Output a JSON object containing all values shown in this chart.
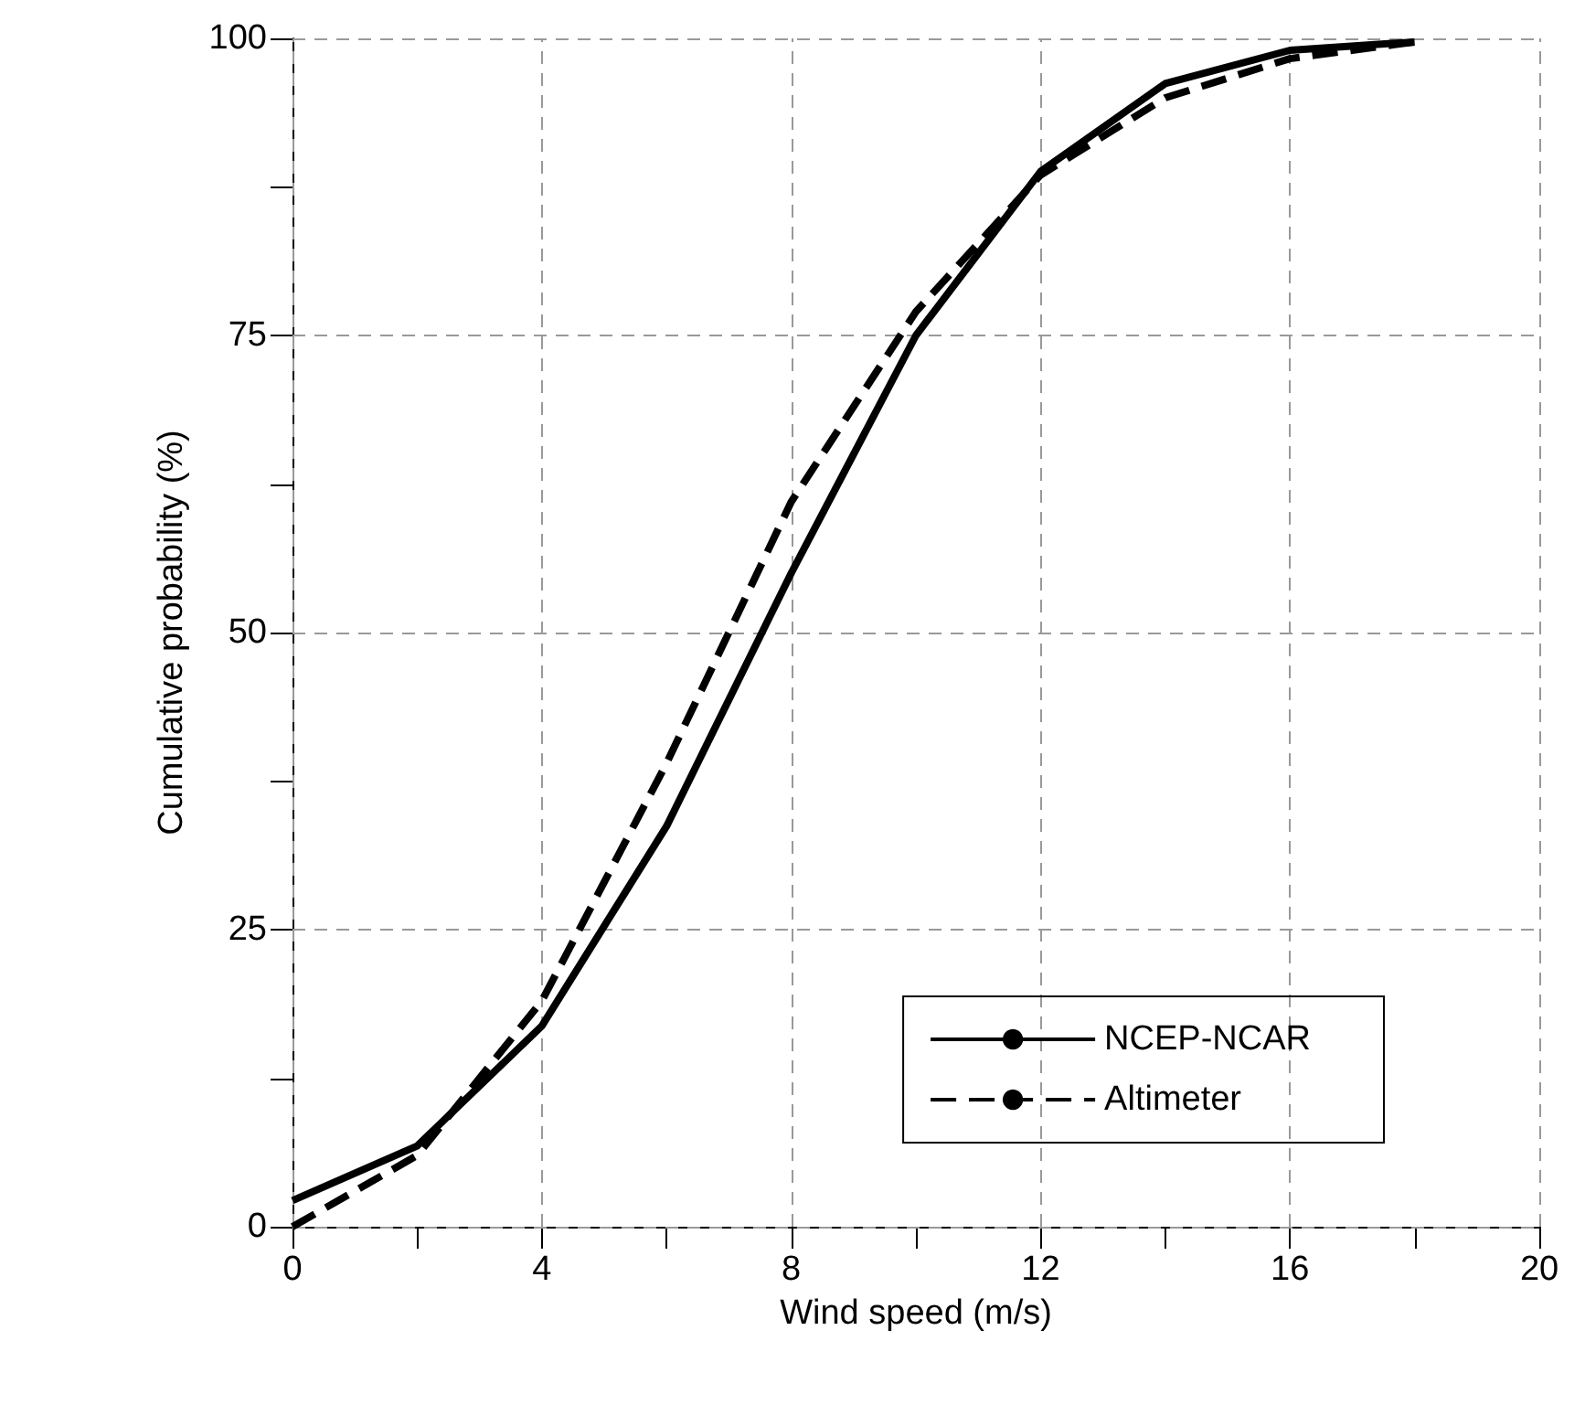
{
  "chart_data": {
    "type": "line",
    "xlabel": "Wind speed (m/s)",
    "ylabel": "Cumulative probability (%)",
    "x": [
      0,
      2,
      4,
      6,
      8,
      10,
      12,
      14,
      16,
      18
    ],
    "series": [
      {
        "name": "NCEP-NCAR",
        "color": "#000000",
        "line_style": "solid",
        "values": [
          2.2,
          6.8,
          16.9,
          33.7,
          55,
          75,
          88.8,
          96.2,
          99,
          99.7
        ]
      },
      {
        "name": "Altimeter",
        "color": "#000000",
        "line_style": "dashed",
        "values": [
          0,
          6,
          19,
          39,
          61,
          77,
          88.5,
          95,
          98.3,
          99.7
        ]
      }
    ],
    "xlim": [
      0,
      20
    ],
    "xticks": [
      0,
      {
        "value": 2,
        "label": null
      },
      4,
      {
        "value": 6,
        "label": null
      },
      8,
      {
        "value": 10,
        "label": null
      },
      12,
      {
        "value": 14,
        "label": null
      },
      16,
      {
        "value": 18,
        "label": null
      },
      20
    ],
    "ylim": [
      0,
      100
    ],
    "yticks": [
      0,
      {
        "value": 12.5,
        "label": null
      },
      25,
      {
        "value": 37.5,
        "label": null
      },
      50,
      {
        "value": 62.5,
        "label": null
      },
      75,
      {
        "value": 87.5,
        "label": null
      },
      100
    ],
    "grid": true,
    "legend": "bottom right",
    "marker": "none"
  }
}
